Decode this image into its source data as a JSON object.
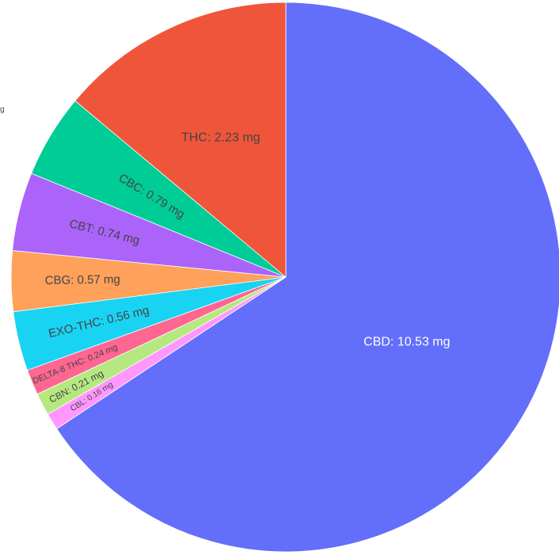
{
  "chart_data": {
    "type": "pie",
    "title": "",
    "unit": "mg",
    "slices": [
      {
        "name": "CBD",
        "value": 10.53,
        "label": "CBD: 10.53 mg",
        "color": "#636efa",
        "text_color": "#ffffff"
      },
      {
        "name": "CBL",
        "value": 0.16,
        "label": "CBL: 0.16 mg",
        "color": "#ff97ff",
        "text_color": "#444444"
      },
      {
        "name": "CBN",
        "value": 0.21,
        "label": "CBN: 0.21 mg",
        "color": "#b6e880",
        "text_color": "#444444"
      },
      {
        "name": "DELTA-8 THC",
        "value": 0.24,
        "label": "DELTA-8 THC: 0.24 mg",
        "color": "#ff6692",
        "text_color": "#444444"
      },
      {
        "name": "EXO-THC",
        "value": 0.56,
        "label": "EXO-THC: 0.56 mg",
        "color": "#19d3f3",
        "text_color": "#444444"
      },
      {
        "name": "CBG",
        "value": 0.57,
        "label": "CBG: 0.57 mg",
        "color": "#ffa15a",
        "text_color": "#444444"
      },
      {
        "name": "CBT",
        "value": 0.74,
        "label": "CBT: 0.74 mg",
        "color": "#ab63fa",
        "text_color": "#444444"
      },
      {
        "name": "CBC",
        "value": 0.79,
        "label": "CBC: 0.79 mg",
        "color": "#00cc96",
        "text_color": "#444444"
      },
      {
        "name": "THC",
        "value": 2.23,
        "label": "THC: 2.23 mg",
        "color": "#ef553b",
        "text_color": "#444444"
      }
    ]
  },
  "edge_fragment": "g"
}
